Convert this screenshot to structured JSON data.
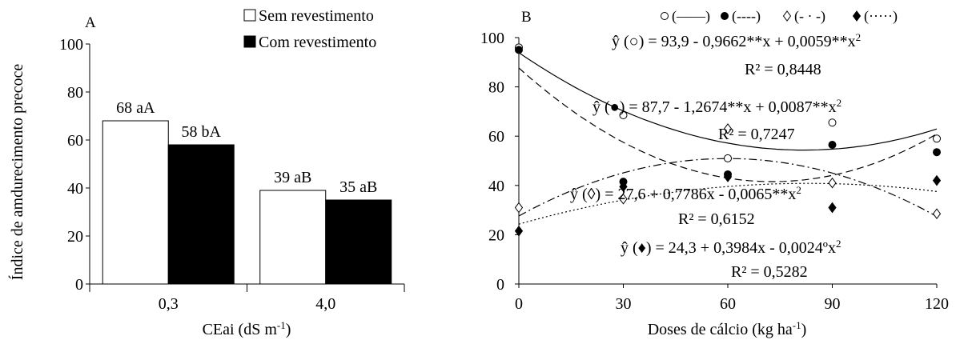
{
  "chart_data": [
    {
      "panel": "A",
      "type": "bar",
      "ylabel": "Índice de amdurecimento  precoce",
      "xlabel": "CEai (dS m",
      "xlabel_sup": "-1",
      "xlabel_tail": ")",
      "categories": [
        "0,3",
        "4,0"
      ],
      "ylim": [
        0,
        100
      ],
      "yticks": [
        0,
        20,
        40,
        60,
        80,
        100
      ],
      "legend_position": "top-right",
      "series": [
        {
          "name": "Sem revestimento",
          "color": "#ffffff",
          "values": [
            68,
            39
          ],
          "labels": [
            "68 aA",
            "39 aB"
          ]
        },
        {
          "name": "Com revestimento",
          "color": "#000000",
          "values": [
            58,
            35
          ],
          "labels": [
            "58 bA",
            "35 aB"
          ]
        }
      ]
    },
    {
      "panel": "B",
      "type": "scatter",
      "xlabel": "Doses de cálcio  (kg ha",
      "xlabel_sup": "-1",
      "xlabel_tail": ")",
      "x": [
        0,
        30,
        60,
        90,
        120
      ],
      "xlim": [
        0,
        120
      ],
      "xticks": [
        0,
        30,
        60,
        90,
        120
      ],
      "ylim": [
        0,
        100
      ],
      "yticks": [
        0,
        20,
        40,
        60,
        80,
        100
      ],
      "legend_position": "top",
      "series": [
        {
          "marker": "open-circle",
          "legend": "(——)",
          "line": "solid",
          "values": [
            96,
            68.5,
            51,
            65.5,
            59
          ],
          "coef": [
            93.9,
            -0.9662,
            0.0059
          ],
          "eq_prefix": "ŷ (○) = 93,9 - 0,9662**x  + 0,0059**x",
          "eq_sup": "2",
          "r2": "R² = 0,8448"
        },
        {
          "marker": "filled-circle",
          "legend": "(----)",
          "line": "dashed",
          "values": [
            95,
            41.5,
            44.5,
            56.5,
            53.5
          ],
          "coef": [
            87.7,
            -1.2674,
            0.0087
          ],
          "eq_prefix": "ŷ (●) =  87,7 - 1,2674**x + 0,0087**x",
          "eq_sup": "2",
          "r2": "R² = 0,7247"
        },
        {
          "marker": "open-diamond",
          "legend": "(- · -)",
          "line": "dashdot",
          "values": [
            31,
            34.5,
            63,
            41,
            28.5
          ],
          "coef": [
            27.6,
            0.7786,
            -0.0065
          ],
          "eq_prefix": "ŷ (◊) = 27,6 + 0,7786x - 0,0065**x",
          "eq_sup": "2",
          "r2": "R² = 0,6152"
        },
        {
          "marker": "filled-diamond",
          "legend": "(·····)",
          "line": "dotted",
          "values": [
            21.5,
            39.5,
            43.5,
            31,
            42
          ],
          "coef": [
            24.3,
            0.3984,
            -0.0024
          ],
          "eq_prefix": "ŷ (♦) = 24,3 + 0,3984x - 0,0024ºx",
          "eq_sup": "2",
          "r2": "R² = 0,5282"
        }
      ]
    }
  ]
}
